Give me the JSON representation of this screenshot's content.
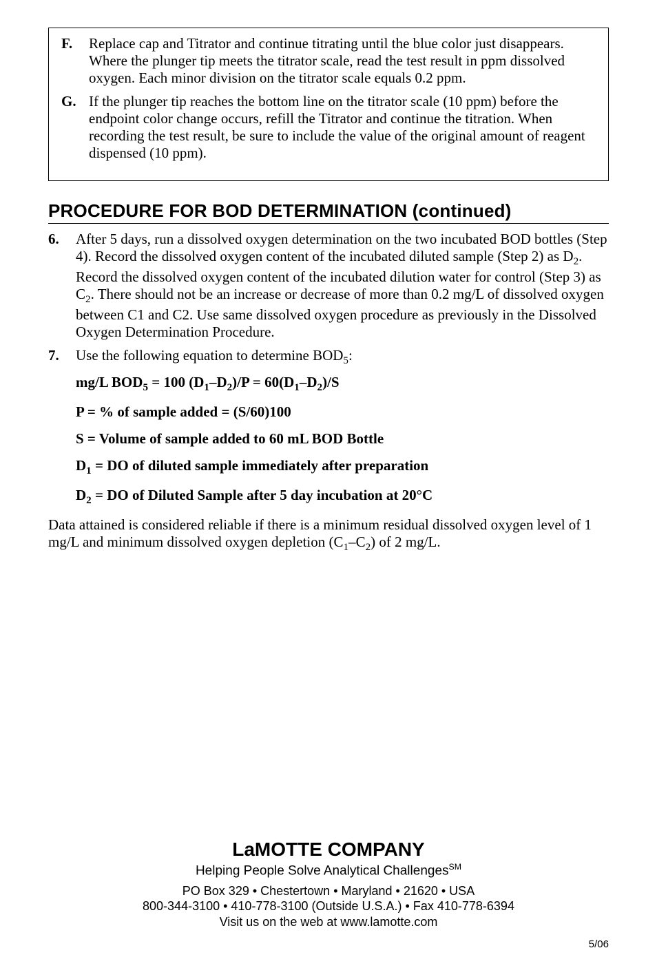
{
  "box": {
    "items": [
      {
        "letter": "F.",
        "text": "Replace cap and Titrator and continue titrating until the blue color just disappears. Where the plunger tip meets the titrator scale, read the test result in ppm dissolved oxygen. Each minor division on the titrator scale equals 0.2 ppm."
      },
      {
        "letter": "G.",
        "text": "If the plunger tip reaches the bottom line on the titrator scale (10 ppm) before the endpoint color change occurs, refill the Titrator and continue the titration. When recording the test result, be sure to include the value of the original amount of reagent dispensed (10 ppm)."
      }
    ]
  },
  "heading": "PROCEDURE FOR BOD DETERMINATION (continued)",
  "steps": [
    {
      "num": "6.",
      "html": "After 5 days, run a dissolved oxygen determination on the two incubated BOD bottles (Step 4). Record the dissolved oxygen content of the incubated diluted sample (Step 2) as D<sub>2</sub>. Record the dissolved oxygen content of the incubated dilution water for control (Step 3) as C<sub>2</sub>. There should not be an increase or decrease of more than 0.2 mg/L of dissolved oxygen between C1 and C2. Use same dissolved oxygen procedure as previously in the Dissolved Oxygen Determination Procedure."
    },
    {
      "num": "7.",
      "html": "Use the following equation to determine BOD<sub>5</sub>:"
    }
  ],
  "eqns": [
    "mg/L BOD<sub>5</sub> = 100 (D<sub>1</sub>–D<sub>2</sub>)/P = 60(D<sub>1</sub>–D<sub>2</sub>)/S",
    "P = % of sample added = (S/60)100",
    "S = Volume of sample added to 60 mL BOD Bottle",
    "D<sub>1</sub> = DO of diluted sample immediately after preparation",
    "D<sub>2</sub> = DO of Diluted Sample after 5 day incubation at 20°C"
  ],
  "closing": "Data attained is considered reliable if there is a minimum residual dissolved oxygen level of 1 mg/L and minimum dissolved oxygen depletion (C<sub>1</sub>–C<sub>2</sub>) of 2 mg/L.",
  "footer": {
    "company": "LaMOTTE COMPANY",
    "tagline": "Helping People Solve Analytical Challenges",
    "addr1": "PO Box 329 • Chestertown • Maryland • 21620 • USA",
    "addr2": "800-344-3100 • 410-778-3100 (Outside U.S.A.) • Fax 410-778-6394",
    "addr3": "Visit us on the web at www.lamotte.com"
  },
  "pagecode": "5/06"
}
